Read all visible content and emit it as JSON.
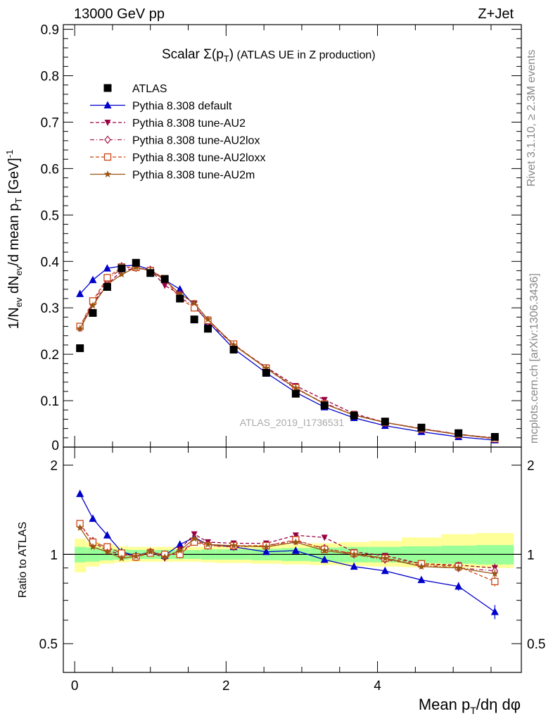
{
  "header": {
    "energy_label": "13000 GeV pp",
    "process_label": "Z+Jet"
  },
  "side_labels": {
    "rivet": "Rivet 3.1.10, ≥ 2.3M events",
    "mcplots": "mcplots.cern.ch [arXiv:1306.3436]"
  },
  "chart_data": [
    {
      "type": "scatter",
      "title": "Scalar Σ(p_T) (ATLAS UE in Z production)",
      "watermark": "ATLAS_2019_I1736531",
      "xlabel": "Mean p_T/dη dφ",
      "ylabel": "1/N_ev dN_ev/d mean p_T [GeV]^-1",
      "xlim": [
        -0.15,
        5.9
      ],
      "ylim": [
        0,
        0.91
      ],
      "yticks": [
        0.1,
        0.2,
        0.3,
        0.4,
        0.5,
        0.6,
        0.7,
        0.8,
        0.9
      ],
      "ytick_labels": [
        "0.1",
        "0.2",
        "0.3",
        "0.4",
        "0.5",
        "0.6",
        "0.7",
        "0.8",
        "0.9"
      ],
      "bottom_tick_label": "0",
      "legend_placement": "top-left",
      "x": [
        0.07,
        0.24,
        0.43,
        0.62,
        0.81,
        1.0,
        1.19,
        1.39,
        1.58,
        1.76,
        2.1,
        2.53,
        2.92,
        3.3,
        3.69,
        4.1,
        4.58,
        5.07,
        5.55
      ],
      "series": [
        {
          "name": "ATLAS",
          "color": "#000000",
          "marker": "square",
          "line": "none",
          "values": [
            0.213,
            0.289,
            0.345,
            0.385,
            0.397,
            0.375,
            0.362,
            0.32,
            0.275,
            0.255,
            0.21,
            0.16,
            0.115,
            0.09,
            0.068,
            0.055,
            0.042,
            0.03,
            0.022
          ]
        },
        {
          "name": "Pythia 8.308 default",
          "color": "#0000cc",
          "marker": "triangle-up",
          "line": "solid",
          "values": [
            0.33,
            0.36,
            0.385,
            0.39,
            0.392,
            0.382,
            0.36,
            0.34,
            0.305,
            0.27,
            0.212,
            0.16,
            0.118,
            0.086,
            0.063,
            0.046,
            0.033,
            0.022,
            0.015
          ]
        },
        {
          "name": "Pythia 8.308 tune-AU2",
          "color": "#990044",
          "marker": "triangle-down",
          "line": "dashed",
          "values": [
            0.255,
            0.31,
            0.35,
            0.38,
            0.385,
            0.382,
            0.348,
            0.33,
            0.31,
            0.275,
            0.22,
            0.172,
            0.132,
            0.102,
            0.072,
            0.053,
            0.04,
            0.027,
            0.02
          ]
        },
        {
          "name": "Pythia 8.308 tune-AU2lox",
          "color": "#aa2255",
          "marker": "diamond-open",
          "line": "dashdot",
          "values": [
            0.258,
            0.312,
            0.36,
            0.385,
            0.386,
            0.382,
            0.362,
            0.322,
            0.305,
            0.27,
            0.22,
            0.17,
            0.125,
            0.095,
            0.069,
            0.053,
            0.04,
            0.028,
            0.019
          ]
        },
        {
          "name": "Pythia 8.308 tune-AU2loxx",
          "color": "#cc4411",
          "marker": "square-open",
          "line": "dashed",
          "values": [
            0.26,
            0.315,
            0.365,
            0.388,
            0.387,
            0.38,
            0.363,
            0.32,
            0.3,
            0.273,
            0.222,
            0.17,
            0.128,
            0.093,
            0.069,
            0.053,
            0.039,
            0.027,
            0.018
          ]
        },
        {
          "name": "Pythia 8.308 tune-AU2m",
          "color": "#995511",
          "marker": "star",
          "line": "solid",
          "values": [
            0.255,
            0.305,
            0.35,
            0.372,
            0.387,
            0.38,
            0.36,
            0.33,
            0.31,
            0.275,
            0.22,
            0.17,
            0.127,
            0.093,
            0.069,
            0.053,
            0.039,
            0.027,
            0.019
          ]
        }
      ]
    },
    {
      "type": "line",
      "ylabel": "Ratio to ATLAS",
      "xlabel": "Mean p_T/dη dφ",
      "xlim": [
        -0.15,
        5.9
      ],
      "ylim": [
        0.4,
        2.3
      ],
      "yticks": [
        0.5,
        1,
        2
      ],
      "ytick_labels": [
        "0.5",
        "1",
        "2"
      ],
      "xticks": [
        0,
        2,
        4
      ],
      "xtick_labels": [
        "0",
        "2",
        "4"
      ],
      "bin_edges": [
        0.0,
        0.15,
        0.33,
        0.52,
        0.71,
        0.9,
        1.1,
        1.29,
        1.48,
        1.67,
        1.86,
        2.33,
        2.73,
        3.11,
        3.5,
        3.89,
        4.32,
        4.84,
        5.3,
        5.8
      ],
      "band_inner_halfwidth": [
        0.06,
        0.055,
        0.045,
        0.04,
        0.035,
        0.035,
        0.035,
        0.035,
        0.035,
        0.04,
        0.04,
        0.045,
        0.05,
        0.055,
        0.06,
        0.06,
        0.065,
        0.07,
        0.075
      ],
      "band_outer_halfwidth": [
        0.1,
        0.09,
        0.07,
        0.06,
        0.055,
        0.055,
        0.055,
        0.055,
        0.055,
        0.06,
        0.065,
        0.07,
        0.075,
        0.08,
        0.085,
        0.09,
        0.095,
        0.1,
        0.1
      ],
      "band_outer_bottom": [
        0.87,
        0.91,
        0.93,
        0.94,
        0.945,
        0.945,
        0.945,
        0.945,
        0.945,
        0.94,
        0.935,
        0.93,
        0.925,
        0.92,
        0.915,
        0.91,
        0.905,
        0.9,
        0.9
      ],
      "band_outer_top": [
        1.13,
        1.1,
        1.08,
        1.065,
        1.06,
        1.06,
        1.06,
        1.06,
        1.06,
        1.065,
        1.07,
        1.075,
        1.08,
        1.09,
        1.1,
        1.11,
        1.14,
        1.17,
        1.18
      ],
      "x": [
        0.07,
        0.24,
        0.43,
        0.62,
        0.81,
        1.0,
        1.19,
        1.39,
        1.58,
        1.76,
        2.1,
        2.53,
        2.92,
        3.3,
        3.69,
        4.1,
        4.58,
        5.07,
        5.55
      ],
      "series": [
        {
          "name": "Pythia 8.308 default",
          "color": "#0000cc",
          "marker": "triangle-up",
          "line": "solid",
          "values": [
            1.6,
            1.32,
            1.16,
            1.02,
            0.99,
            1.02,
            0.99,
            1.08,
            1.14,
            1.08,
            1.06,
            1.02,
            1.03,
            0.96,
            0.91,
            0.88,
            0.82,
            0.78,
            0.64
          ],
          "errors": [
            0.02,
            0.015,
            0.01,
            0.01,
            0.01,
            0.01,
            0.01,
            0.01,
            0.01,
            0.01,
            0.01,
            0.01,
            0.01,
            0.01,
            0.01,
            0.015,
            0.015,
            0.025,
            0.035
          ]
        },
        {
          "name": "Pythia 8.308 tune-AU2",
          "color": "#990044",
          "marker": "triangle-down",
          "line": "dashed",
          "values": [
            1.27,
            1.1,
            1.03,
            1.0,
            0.985,
            1.02,
            0.97,
            1.04,
            1.17,
            1.1,
            1.09,
            1.09,
            1.16,
            1.14,
            1.02,
            0.99,
            0.93,
            0.92,
            0.9
          ],
          "errors": [
            0.02,
            0.015,
            0.01,
            0.01,
            0.01,
            0.01,
            0.01,
            0.01,
            0.01,
            0.01,
            0.01,
            0.01,
            0.01,
            0.01,
            0.01,
            0.015,
            0.015,
            0.025,
            0.03
          ]
        },
        {
          "name": "Pythia 8.308 tune-AU2lox",
          "color": "#aa2255",
          "marker": "diamond-open",
          "line": "dashdot",
          "values": [
            1.25,
            1.11,
            1.05,
            1.01,
            0.98,
            1.02,
            1.0,
            1.0,
            1.12,
            1.07,
            1.06,
            1.07,
            1.11,
            1.05,
            1.0,
            0.96,
            0.92,
            0.9,
            0.88
          ],
          "errors": [
            0.02,
            0.015,
            0.01,
            0.01,
            0.01,
            0.01,
            0.01,
            0.01,
            0.01,
            0.01,
            0.01,
            0.01,
            0.01,
            0.01,
            0.01,
            0.015,
            0.015,
            0.025,
            0.03
          ]
        },
        {
          "name": "Pythia 8.308 tune-AU2loxx",
          "color": "#cc4411",
          "marker": "square-open",
          "line": "dashed",
          "values": [
            1.27,
            1.1,
            1.06,
            1.01,
            0.98,
            1.01,
            1.0,
            1.0,
            1.1,
            1.07,
            1.07,
            1.07,
            1.12,
            1.04,
            1.01,
            0.97,
            0.93,
            0.91,
            0.81
          ],
          "errors": [
            0.02,
            0.015,
            0.01,
            0.01,
            0.01,
            0.01,
            0.01,
            0.01,
            0.01,
            0.01,
            0.01,
            0.01,
            0.01,
            0.01,
            0.01,
            0.015,
            0.015,
            0.025,
            0.03
          ]
        },
        {
          "name": "Pythia 8.308 tune-AU2m",
          "color": "#995511",
          "marker": "star",
          "line": "solid",
          "values": [
            1.23,
            1.06,
            1.02,
            0.97,
            0.985,
            1.02,
            0.98,
            1.03,
            1.13,
            1.08,
            1.07,
            1.06,
            1.1,
            1.03,
            1.0,
            0.97,
            0.91,
            0.9,
            0.86
          ],
          "errors": [
            0.02,
            0.015,
            0.01,
            0.01,
            0.01,
            0.01,
            0.01,
            0.01,
            0.01,
            0.01,
            0.01,
            0.01,
            0.01,
            0.01,
            0.01,
            0.015,
            0.015,
            0.025,
            0.03
          ]
        }
      ]
    }
  ]
}
